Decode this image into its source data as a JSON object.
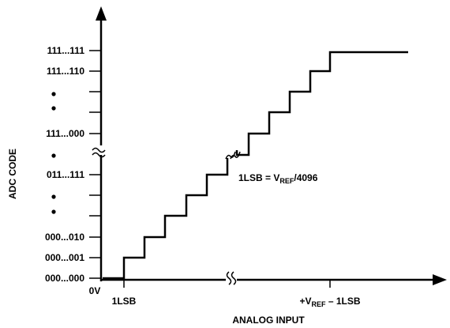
{
  "diagram": {
    "y_axis_title": "ADC CODE",
    "x_axis_title": "ANALOG INPUT",
    "y_labels": {
      "top": "111...111",
      "second": "111...110",
      "upper_break": "111...000",
      "lower_break": "011...111",
      "third_from_bottom": "000...010",
      "second_from_bottom": "000...001",
      "bottom": "000...000"
    },
    "x_labels": {
      "origin": "0V",
      "first_step": "1LSB",
      "full_scale_prefix": "+V",
      "full_scale_sub": "REF",
      "full_scale_suffix": " – 1LSB"
    },
    "annotation": {
      "prefix": "1LSB = V",
      "sub": "REF",
      "suffix": "/4096"
    }
  }
}
